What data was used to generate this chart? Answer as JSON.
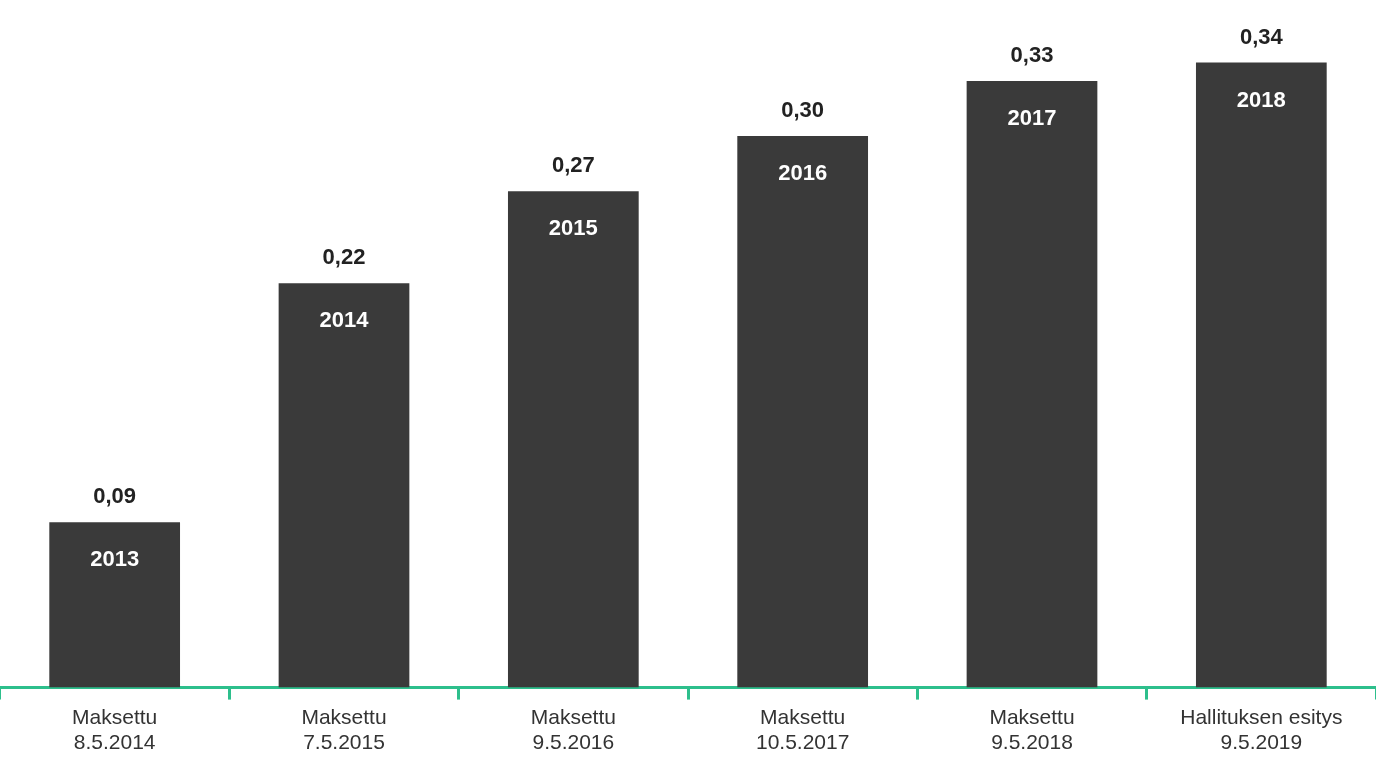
{
  "chart_data": {
    "type": "bar",
    "categories": [
      "Maksettu\n8.5.2014",
      "Maksettu\n7.5.2015",
      "Maksettu\n9.5.2016",
      "Maksettu\n10.5.2017",
      "Maksettu\n9.5.2018",
      "Hallituksen esitys\n9.5.2019"
    ],
    "values": [
      0.09,
      0.22,
      0.27,
      0.3,
      0.33,
      0.34
    ],
    "value_labels": [
      "0,09",
      "0,22",
      "0,27",
      "0,30",
      "0,33",
      "0,34"
    ],
    "color": "#3a3a3a",
    "annotations": [
      "2013",
      "2014",
      "2015",
      "2016",
      "2017",
      "2018"
    ],
    "grid": false,
    "legend": false
  }
}
